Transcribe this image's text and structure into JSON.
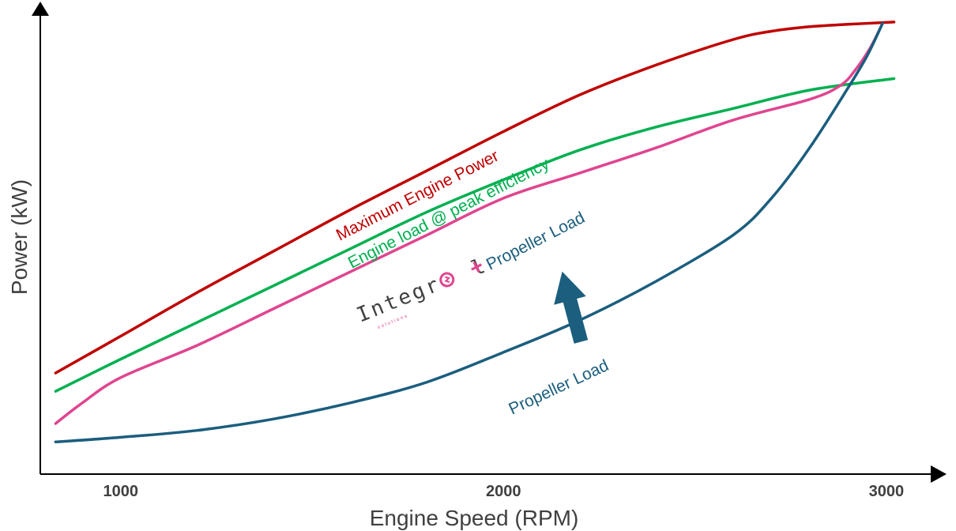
{
  "chart_data": {
    "type": "line",
    "title": "",
    "xlabel": "Engine Speed (RPM)",
    "ylabel": "Power (kW)",
    "x_ticks": [
      {
        "value": 1000,
        "label": "1000"
      },
      {
        "value": 2000,
        "label": "2000"
      },
      {
        "value": 3000,
        "label": "3000"
      }
    ],
    "xlim": [
      790,
      3120
    ],
    "ylim": [
      0,
      100
    ],
    "grid": false,
    "y_tick_labels": false,
    "series": [
      {
        "name": "Maximum Engine Power",
        "color": "#c00000",
        "x": [
          830,
          1000,
          1200,
          1400,
          1600,
          1800,
          2000,
          2200,
          2400,
          2600,
          2700,
          2800,
          2900,
          3020
        ],
        "y": [
          22,
          30,
          39.5,
          48.5,
          57.5,
          66,
          74.5,
          82.5,
          89,
          94.5,
          96.3,
          97.3,
          97.8,
          98.3
        ]
      },
      {
        "name": "Engine load @ peak efficiency",
        "color": "#00b050",
        "x": [
          830,
          1000,
          1200,
          1400,
          1600,
          1800,
          2000,
          2200,
          2400,
          2600,
          2800,
          3020
        ],
        "y": [
          18,
          25,
          33,
          41,
          49,
          57,
          64,
          70.5,
          75.5,
          79.5,
          83.5,
          86
        ]
      },
      {
        "name": "Integral + Propeller Load",
        "color": "#e0458f",
        "x": [
          830,
          900,
          1000,
          1200,
          1400,
          1600,
          1800,
          2000,
          2200,
          2400,
          2600,
          2800,
          2880,
          2920,
          2960,
          2990
        ],
        "y": [
          11,
          15.5,
          21,
          28,
          36,
          44,
          52,
          60,
          65.5,
          71,
          77,
          81.5,
          84.5,
          88,
          93,
          98
        ]
      },
      {
        "name": "Propeller Load",
        "color": "#1b5e7e",
        "x": [
          830,
          1000,
          1200,
          1400,
          1600,
          1800,
          2000,
          2200,
          2400,
          2600,
          2700,
          2800,
          2900,
          2950,
          2990
        ],
        "y": [
          7,
          8,
          9.5,
          12,
          15.5,
          20,
          26.5,
          33.5,
          42,
          52,
          60,
          71,
          84,
          91,
          98
        ]
      }
    ],
    "annotations": [
      {
        "text": "Maximum Engine Power",
        "series": 0
      },
      {
        "text": "Engine load @ peak efficiency",
        "series": 1
      },
      {
        "text": "Propeller Load",
        "series": 3
      },
      {
        "text": "+ Propeller Load",
        "series": 2
      }
    ],
    "logo": {
      "text": "Integr",
      "tail": "l",
      "sub": "solutions"
    },
    "arrow_color": "#1b5e7e",
    "axis_color": "#000000"
  }
}
